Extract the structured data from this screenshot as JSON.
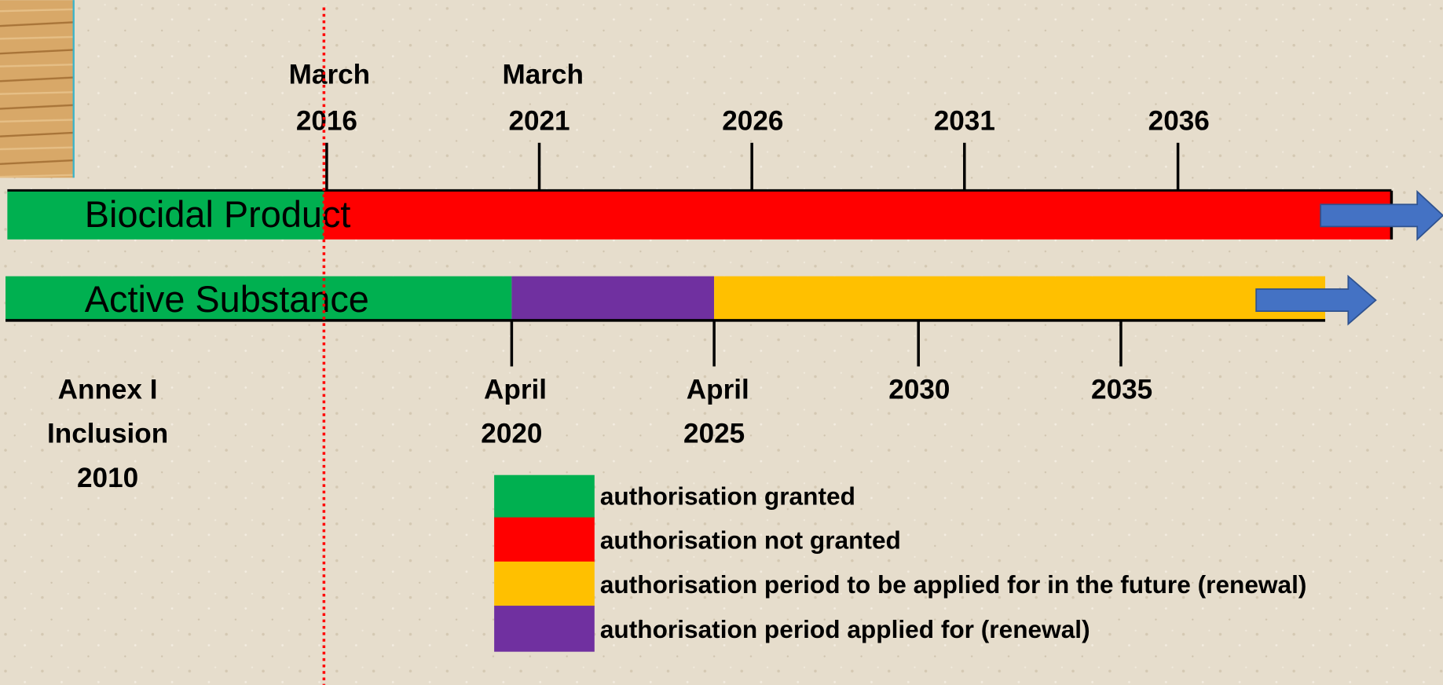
{
  "top_axis": [
    [
      "March",
      "2016"
    ],
    [
      "March",
      "2021"
    ],
    [
      "2026"
    ],
    [
      "2031"
    ],
    [
      "2036"
    ]
  ],
  "bars": [
    {
      "label": "Biocidal Product"
    },
    {
      "label": "Active Substance"
    }
  ],
  "bottom_axis": [
    [
      "April",
      "2020"
    ],
    [
      "April",
      "2025"
    ],
    [
      "2030"
    ],
    [
      "2035"
    ]
  ],
  "annex": [
    "Annex I",
    "Inclusion",
    "2010"
  ],
  "legend": [
    "authorisation granted",
    "authorisation not granted",
    "authorisation period to be applied for in the future (renewal)",
    "authorisation period applied for (renewal)"
  ]
}
